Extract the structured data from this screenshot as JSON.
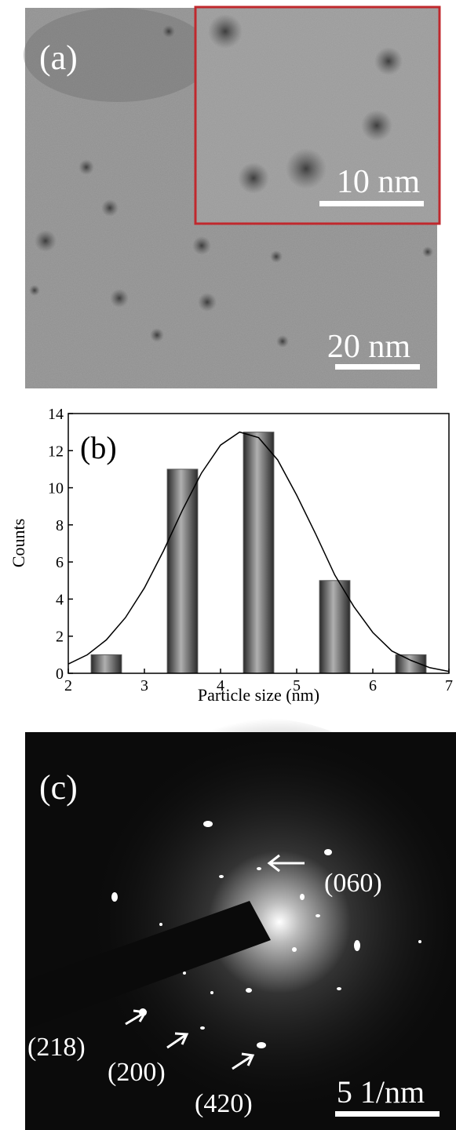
{
  "panel_a": {
    "label": "(a)",
    "inset_scale": "10 nm",
    "scale": "20 nm"
  },
  "chart_data": {
    "type": "bar",
    "panel_label": "(b)",
    "x_label": "Particle size (nm)",
    "y_label": "Counts",
    "x": [
      2.5,
      3.5,
      4.5,
      5.5,
      6.5
    ],
    "values": [
      1,
      11,
      13,
      5,
      1
    ],
    "color": "#5a5a5a",
    "fit_x": [
      2,
      2.25,
      2.5,
      2.75,
      3,
      3.25,
      3.5,
      3.75,
      4,
      4.25,
      4.5,
      4.75,
      5,
      5.25,
      5.5,
      5.75,
      6,
      6.25,
      6.5,
      6.75,
      7
    ],
    "fit_values": [
      0.5,
      1.0,
      1.8,
      3.0,
      4.6,
      6.6,
      8.8,
      10.8,
      12.3,
      13.0,
      12.7,
      11.5,
      9.6,
      7.5,
      5.3,
      3.6,
      2.2,
      1.2,
      0.7,
      0.3,
      0.1
    ],
    "xlim": [
      2,
      7
    ],
    "xticks": [
      2,
      3,
      4,
      5,
      6,
      7
    ],
    "ylim": [
      0,
      14
    ],
    "yticks": [
      0,
      2,
      4,
      6,
      8,
      10,
      12,
      14
    ],
    "grid": false
  },
  "panel_c": {
    "label": "(c)",
    "spot_060": "(060)",
    "spot_218": "(218)",
    "spot_200": "(200)",
    "spot_420": "(420)",
    "scale": "5 1/nm"
  }
}
